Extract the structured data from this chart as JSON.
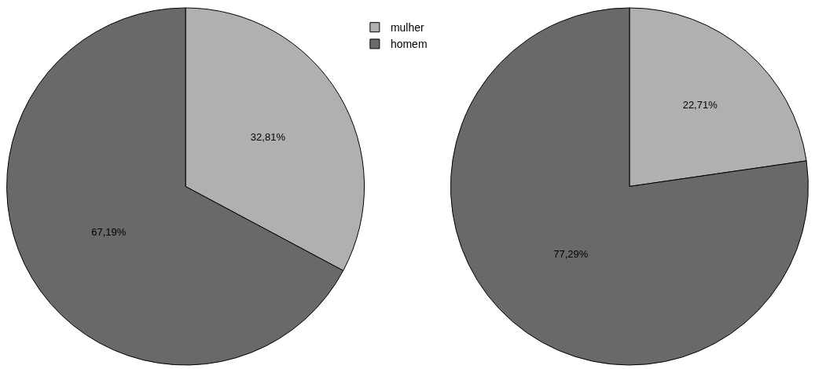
{
  "chart_data": [
    {
      "type": "pie",
      "categories": [
        "mulher",
        "homem"
      ],
      "values": [
        32.81,
        67.19
      ],
      "colors": [
        "#b0b0b0",
        "#696969"
      ],
      "value_labels": [
        "32,81%",
        "67,19%"
      ],
      "legend": "top right"
    },
    {
      "type": "pie",
      "categories": [
        null,
        null
      ],
      "values": [
        22.71,
        77.29
      ],
      "colors": [
        "#b0b0b0",
        "#696969"
      ],
      "value_labels": [
        "22,71%",
        "77,29%"
      ]
    }
  ]
}
